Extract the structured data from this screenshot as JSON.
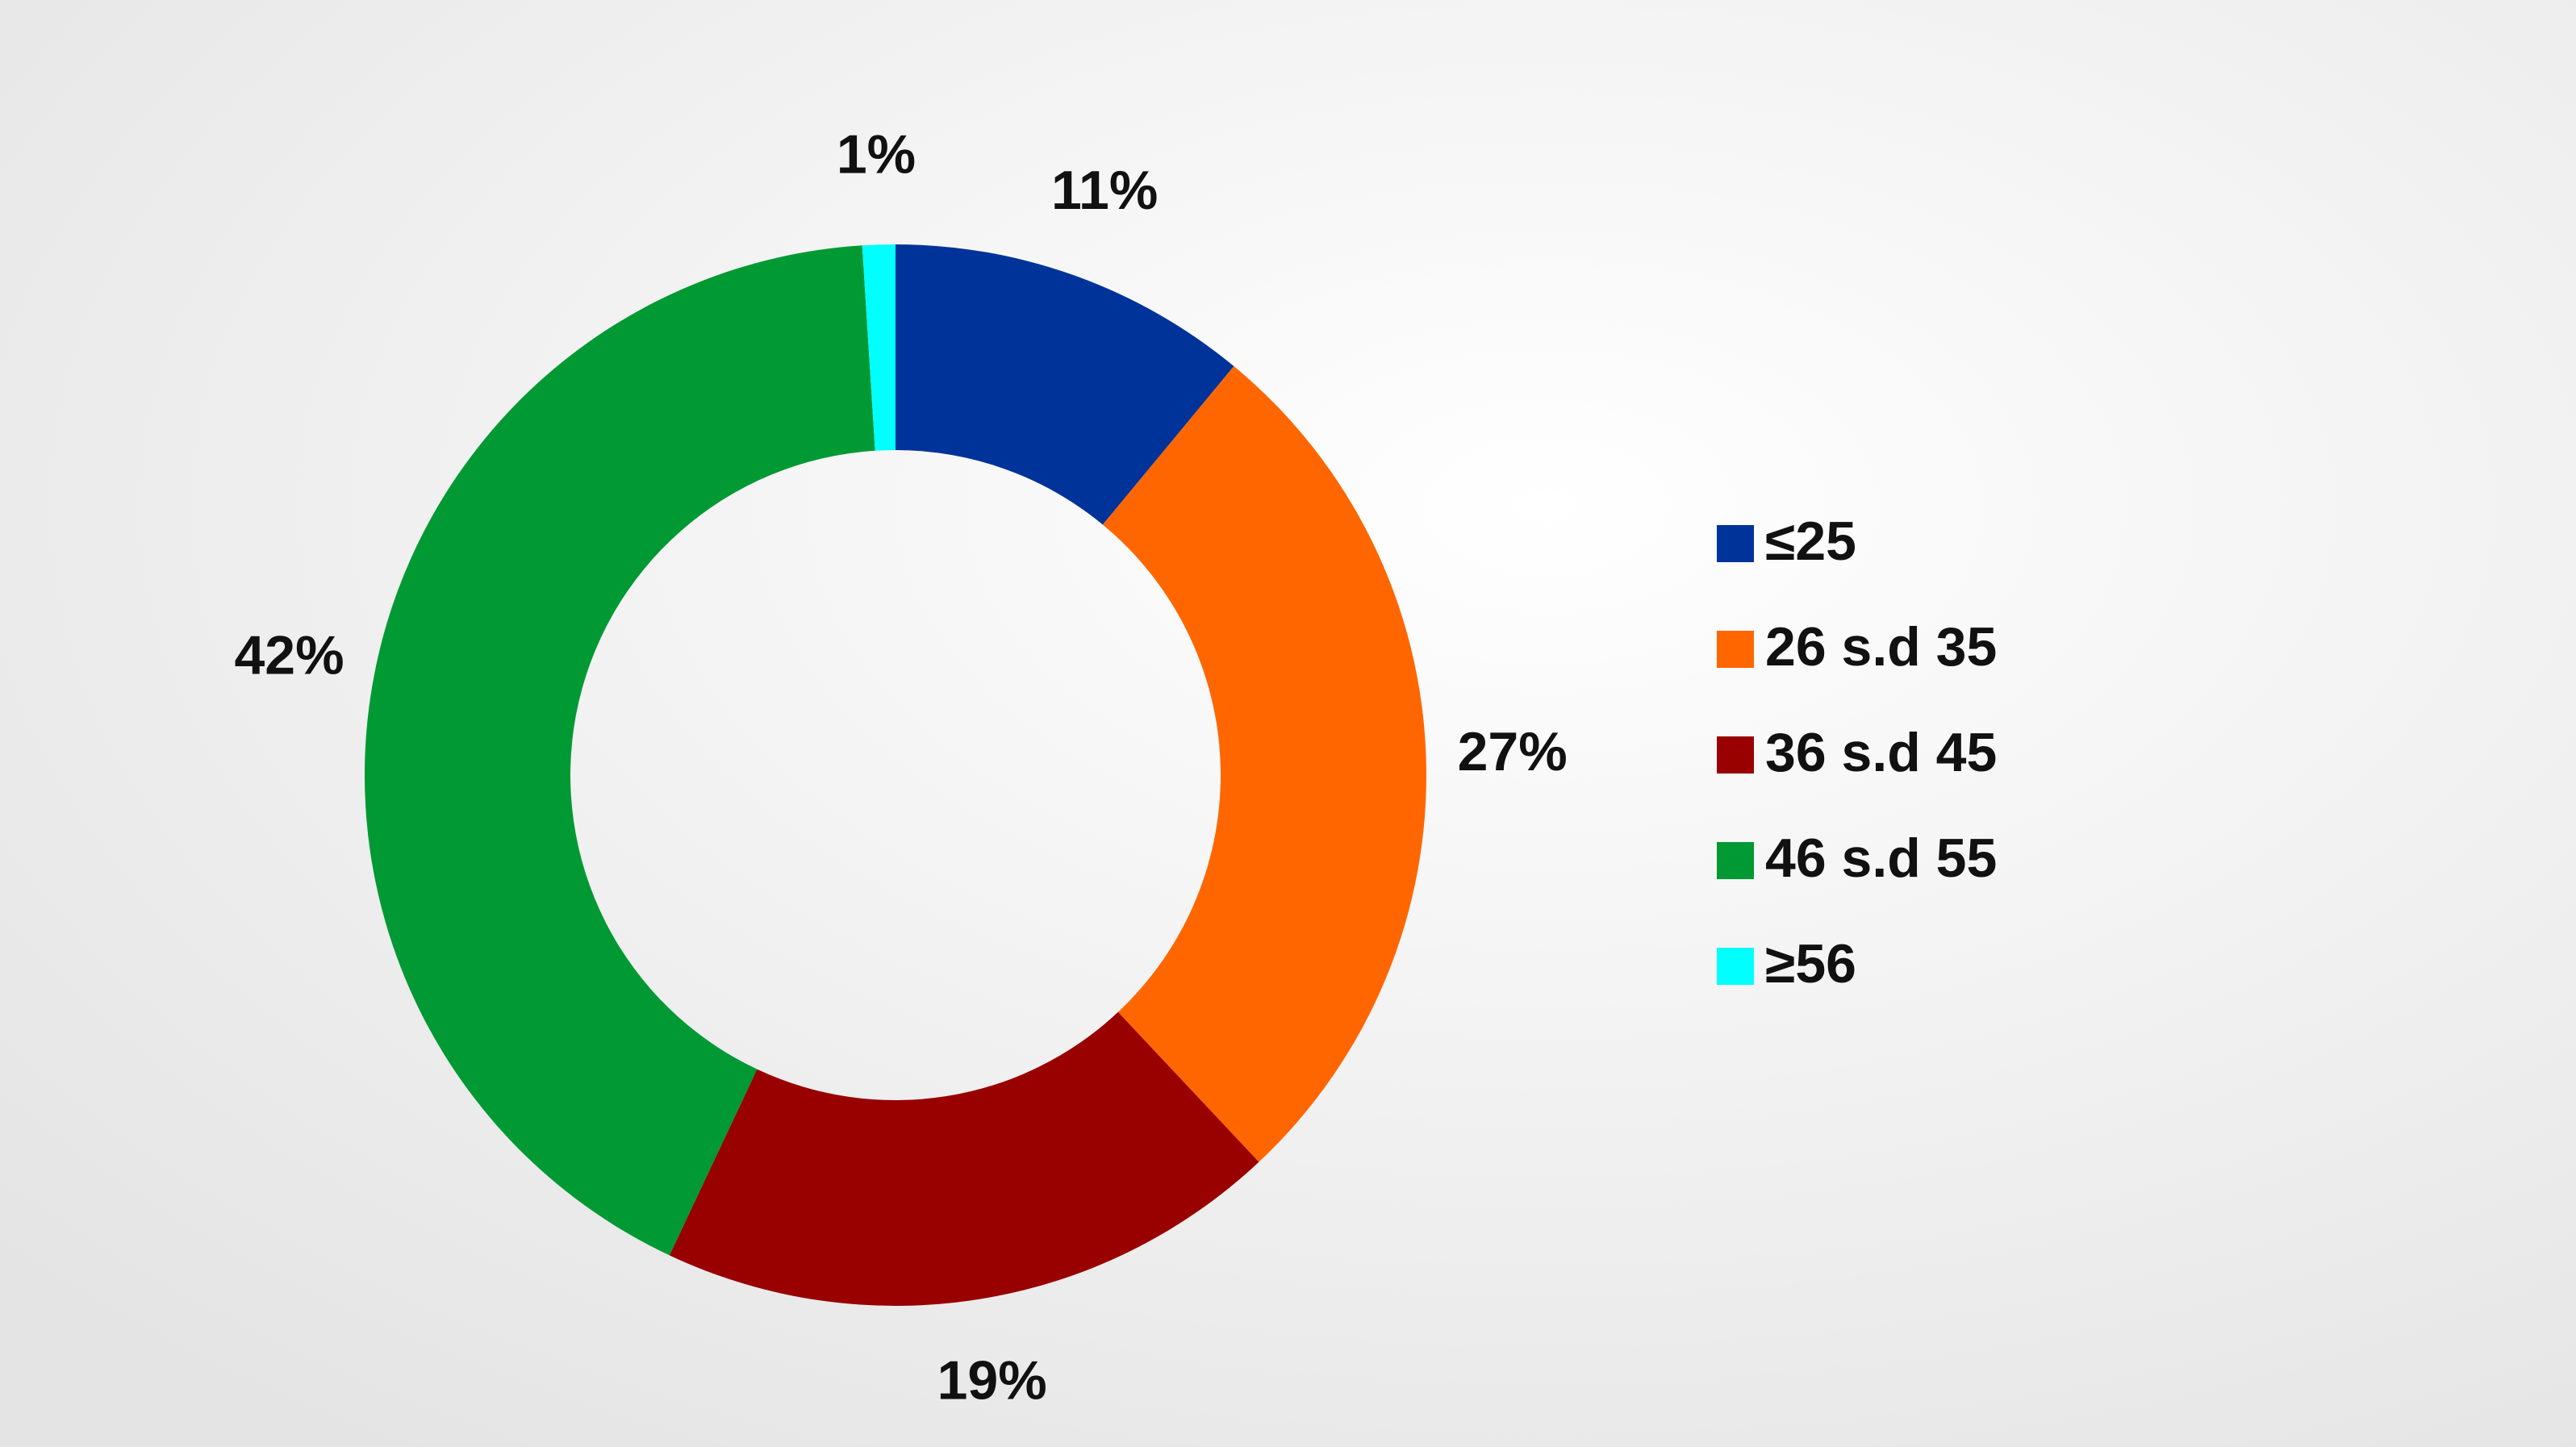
{
  "chart_data": {
    "type": "donut",
    "categories": [
      "≤25",
      "26 s.d 35",
      "36 s.d 45",
      "46 s.d 55",
      "≥56"
    ],
    "values": [
      11,
      27,
      19,
      42,
      1
    ],
    "value_labels": [
      "11%",
      "27%",
      "19%",
      "42%",
      "1%"
    ],
    "colors": [
      "#003399",
      "#ff6600",
      "#990000",
      "#009933",
      "#00ffff"
    ],
    "legend": "right"
  }
}
